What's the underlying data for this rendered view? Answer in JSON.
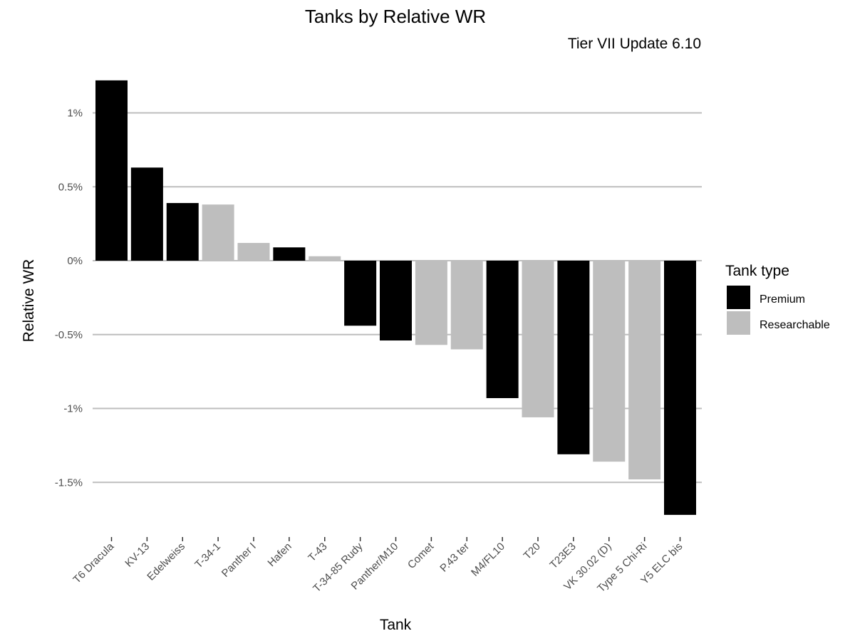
{
  "chart_data": {
    "type": "bar",
    "title": "Tanks by Relative WR",
    "subtitle": "Tier VII Update 6.10",
    "xlabel": "Tank",
    "ylabel": "Relative WR",
    "ylim": [
      -1.8,
      1.25
    ],
    "yticks": [
      1,
      0.5,
      0,
      -0.5,
      -1,
      -1.5
    ],
    "ytick_labels": [
      "1%",
      "0.5%",
      "0%",
      "-0.5%",
      "-1%",
      "-1.5%"
    ],
    "grid": true,
    "legend": {
      "title": "Tank type",
      "position": "right",
      "entries": [
        {
          "label": "Premium",
          "color": "#000000"
        },
        {
          "label": "Researchable",
          "color": "#bebebe"
        }
      ]
    },
    "categories": [
      "T6 Dracula",
      "KV-13",
      "Edelweiss",
      "T-34-1",
      "Panther I",
      "Hafen",
      "T-43",
      "T-34-85 Rudy",
      "Panther/M10",
      "Comet",
      "P.43 ter",
      "M4/FL10",
      "T20",
      "T23E3",
      "VK 30.02 (D)",
      "Type 5 Chi-Ri",
      "Y5 ELC bis"
    ],
    "values": [
      1.22,
      0.63,
      0.39,
      0.38,
      0.12,
      0.09,
      0.03,
      -0.44,
      -0.54,
      -0.57,
      -0.6,
      -0.93,
      -1.06,
      -1.31,
      -1.36,
      -1.48,
      -1.72
    ],
    "tank_type": [
      "Premium",
      "Premium",
      "Premium",
      "Researchable",
      "Researchable",
      "Premium",
      "Researchable",
      "Premium",
      "Premium",
      "Researchable",
      "Researchable",
      "Premium",
      "Researchable",
      "Premium",
      "Researchable",
      "Researchable",
      "Premium"
    ]
  }
}
